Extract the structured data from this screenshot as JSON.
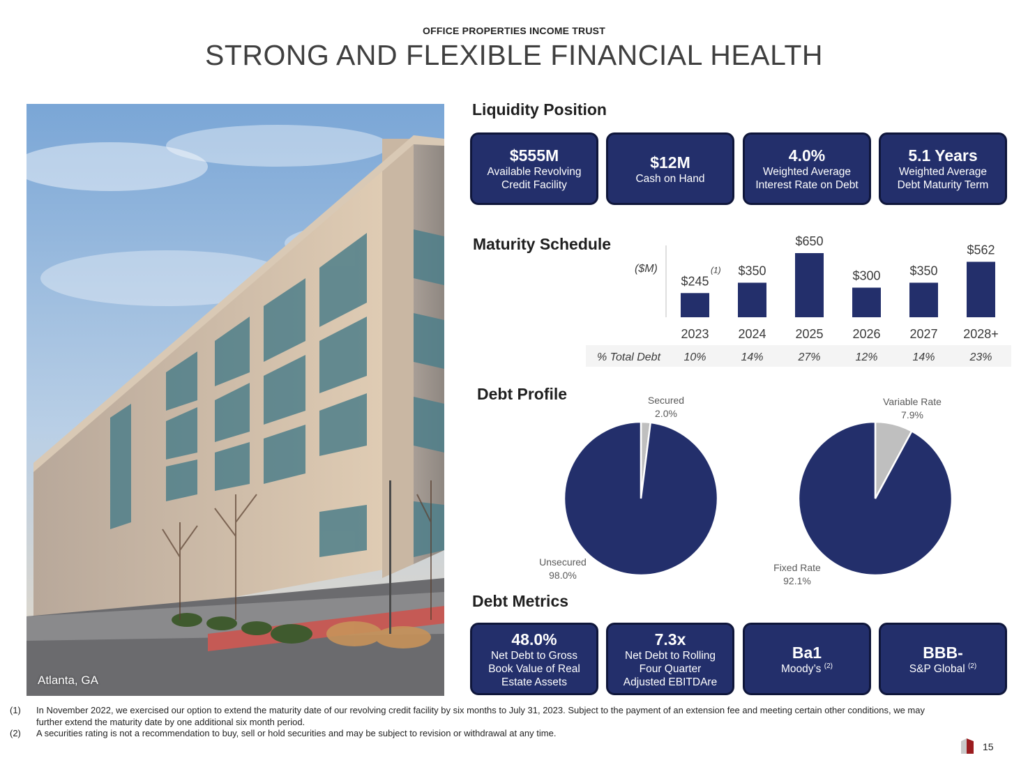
{
  "header": {
    "kicker": "OFFICE PROPERTIES INCOME TRUST",
    "title": "STRONG AND FLEXIBLE FINANCIAL HEALTH"
  },
  "photo": {
    "caption": "Atlanta, GA"
  },
  "liquidity": {
    "heading": "Liquidity Position",
    "cards": [
      {
        "value": "$555M",
        "line1": "Available Revolving",
        "line2": "Credit Facility"
      },
      {
        "value": "$12M",
        "line1": "Cash on Hand",
        "line2": ""
      },
      {
        "value": "4.0%",
        "line1": "Weighted Average",
        "line2": "Interest Rate on Debt"
      },
      {
        "value": "5.1 Years",
        "line1": "Weighted Average",
        "line2": "Debt Maturity Term"
      }
    ]
  },
  "maturity": {
    "heading": "Maturity Schedule",
    "unit": "($M)",
    "row_label": "% Total Debt",
    "footnote_marker": "(1)"
  },
  "debt_profile": {
    "heading": "Debt Profile"
  },
  "debt_metrics": {
    "heading": "Debt Metrics",
    "cards": [
      {
        "value": "48.0%",
        "line1": "Net Debt to Gross",
        "line2": "Book Value of Real",
        "line3": "Estate Assets",
        "sup": ""
      },
      {
        "value": "7.3x",
        "line1": "Net Debt to Rolling",
        "line2": "Four Quarter",
        "line3": "Adjusted EBITDAre",
        "sup": ""
      },
      {
        "value": "Ba1",
        "line1": "Moody’s",
        "line2": "",
        "line3": "",
        "sup": "(2)"
      },
      {
        "value": "BBB-",
        "line1": "S&P Global",
        "line2": "",
        "line3": "",
        "sup": "(2)"
      }
    ]
  },
  "footnotes": [
    {
      "num": "(1)",
      "text": "In November 2022, we exercised our option to extend the maturity date of our revolving credit facility by six months to July 31, 2023. Subject to the payment of an extension fee and meeting certain other conditions, we may further extend the maturity date by one additional six month period."
    },
    {
      "num": "(2)",
      "text": "A securities rating is not a recommendation to buy, sell or hold securities and may be subject to revision or withdrawal at any time."
    }
  ],
  "page_number": "15",
  "colors": {
    "navy": "#232f6b",
    "gray": "#bfbfbf",
    "brand_red": "#9b1c1f"
  },
  "chart_data": [
    {
      "type": "bar",
      "categories": [
        "2023",
        "2024",
        "2025",
        "2026",
        "2027",
        "2028+"
      ],
      "values": [
        245,
        350,
        650,
        300,
        350,
        562
      ],
      "value_labels": [
        "$245",
        "$350",
        "$650",
        "$300",
        "$350",
        "$562"
      ],
      "pct_total_debt": [
        "10%",
        "14%",
        "27%",
        "12%",
        "14%",
        "23%"
      ],
      "ylabel": "($M)",
      "ylim": [
        0,
        650
      ],
      "grid": false,
      "color": "#232f6b"
    },
    {
      "type": "pie",
      "labels": [
        "Secured",
        "Unsecured"
      ],
      "values": [
        2.0,
        98.0
      ],
      "value_labels": [
        "2.0%",
        "98.0%"
      ],
      "colors": [
        "#bfbfbf",
        "#232f6b"
      ]
    },
    {
      "type": "pie",
      "labels": [
        "Variable Rate",
        "Fixed Rate"
      ],
      "values": [
        7.9,
        92.1
      ],
      "value_labels": [
        "7.9%",
        "92.1%"
      ],
      "colors": [
        "#bfbfbf",
        "#232f6b"
      ]
    }
  ]
}
